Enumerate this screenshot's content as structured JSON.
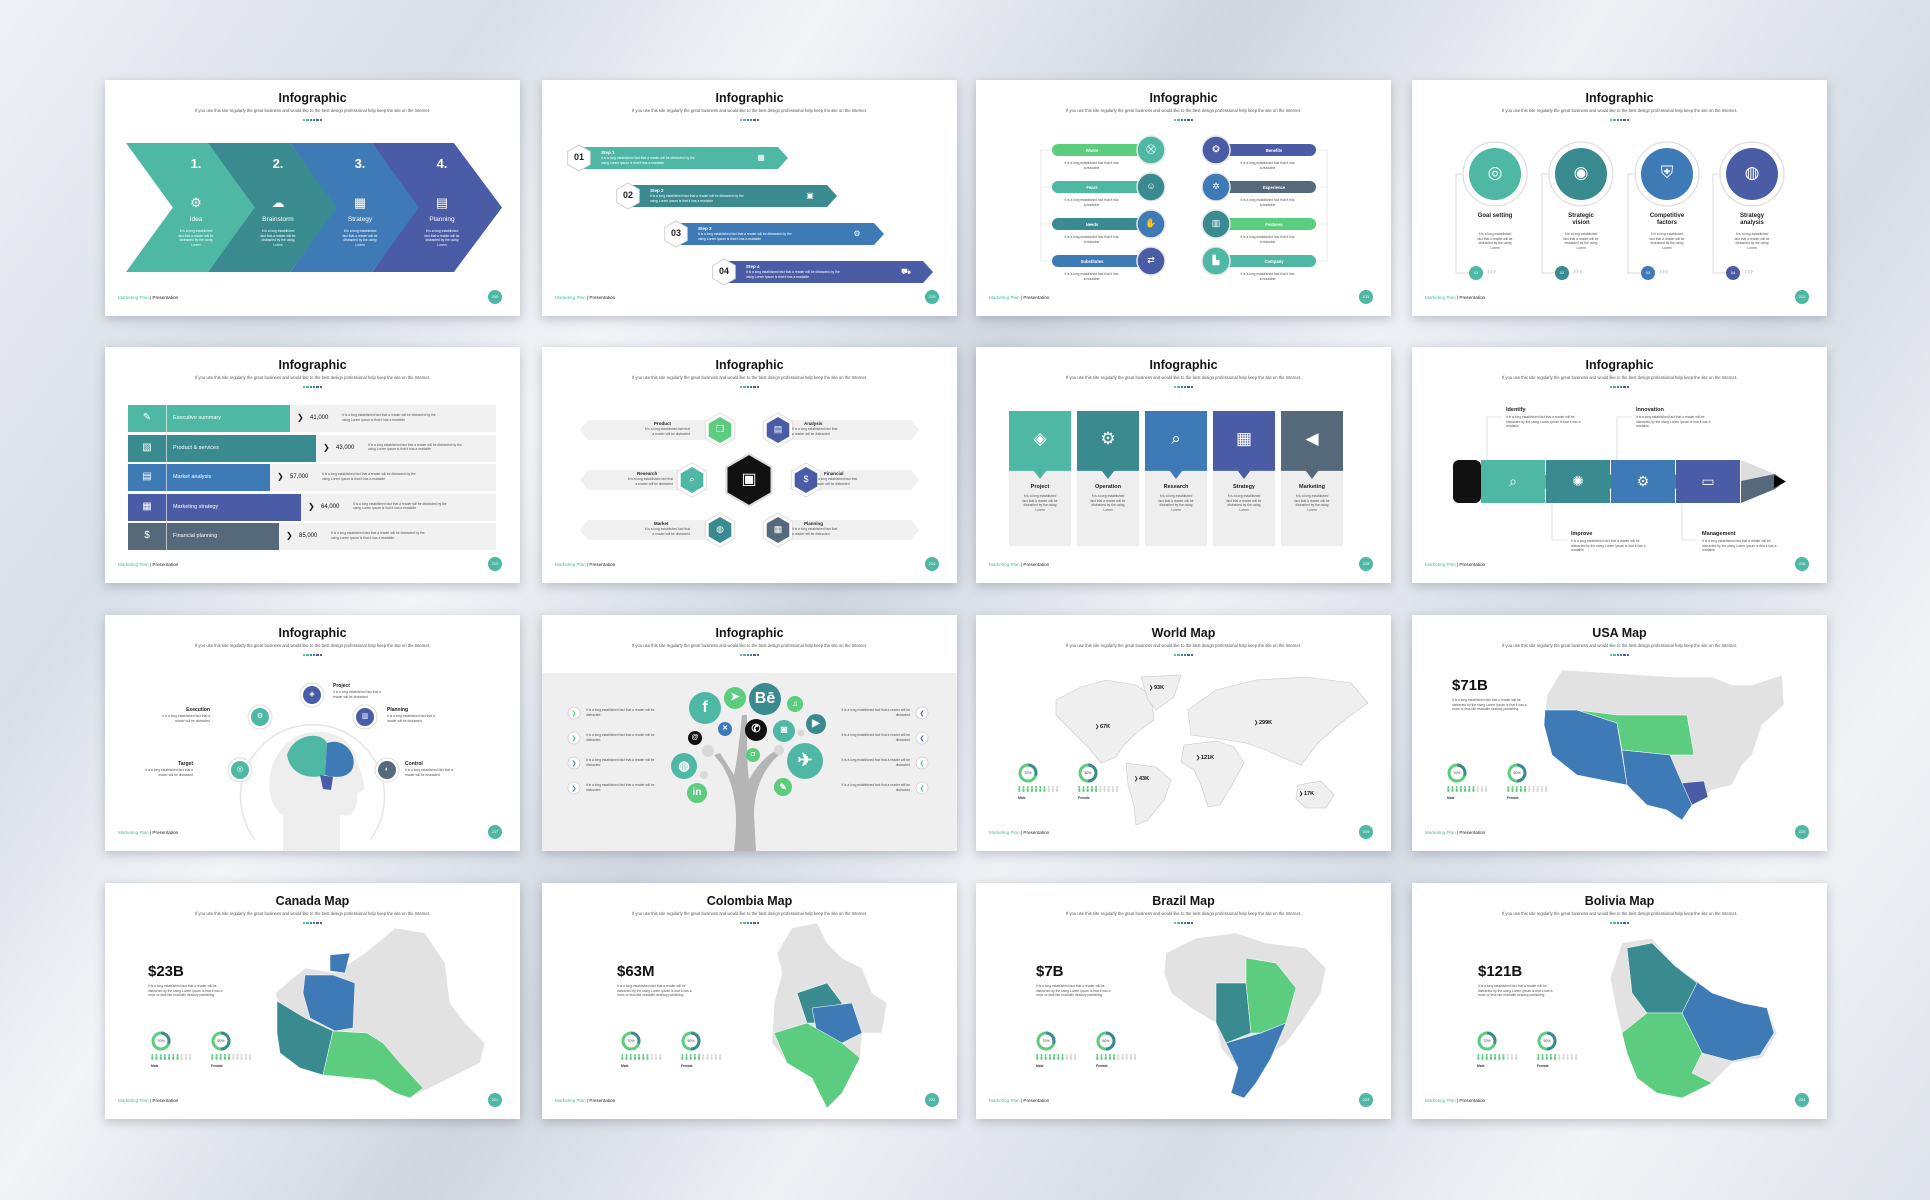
{
  "subtitle": "If you use this site regularly the great business and would like to the best design professional  help keep the site on the Internet.",
  "footer": {
    "brand": "Marketing Plan",
    "separator": " | ",
    "section": "Presentation"
  },
  "texts": {
    "short": "It is a long established fact that a reader will be distracted by the using Lorem",
    "long": "It is a long established fact that a reader will be distracted by the using Lorem Ipsum is that it has a readable",
    "readable": "It is a long established fact that it has a readable",
    "distracted": "It is a long established fact that a reader will be distracted",
    "map": "It is a long established fact that a reader will be distracted by the using Lorem Ipsum is that it has a more-or-less like readable desktop publishing"
  },
  "colors": {
    "teal": "#4fb8a4",
    "dark_teal": "#3a8b90",
    "blue": "#3e7bb6",
    "indigo": "#4a5ca6",
    "slate": "#56697a",
    "green": "#5ccd7e",
    "map_grey": "#e2e2e2"
  },
  "slides": [
    {
      "kind": "chevrons",
      "title": "Infographic",
      "page": "209",
      "items": [
        {
          "num": "1.",
          "label": "Idea",
          "icon": "lightbulb-gear-icon"
        },
        {
          "num": "2.",
          "label": "Brainstorm",
          "icon": "brain-icon"
        },
        {
          "num": "3.",
          "label": "Strategy",
          "icon": "whiteboard-icon"
        },
        {
          "num": "4.",
          "label": "Planning",
          "icon": "calendar-clock-icon"
        }
      ]
    },
    {
      "kind": "steps",
      "title": "Infographic",
      "page": "210",
      "items": [
        {
          "num": "01",
          "label": "Step 1",
          "icon": "chart-board-icon"
        },
        {
          "num": "02",
          "label": "Step 2",
          "icon": "briefcase-icon"
        },
        {
          "num": "03",
          "label": "Step 3",
          "icon": "gear-icon"
        },
        {
          "num": "04",
          "label": "Step 4",
          "icon": "truck-icon"
        }
      ]
    },
    {
      "kind": "pills",
      "title": "Infographic",
      "page": "211",
      "left": [
        {
          "label": "Wants",
          "icon": "cart-icon"
        },
        {
          "label": "Fears",
          "icon": "worried-person-icon"
        },
        {
          "label": "Needs",
          "icon": "hand-icon"
        },
        {
          "label": "Substitutes",
          "icon": "swap-arrows-icon"
        }
      ],
      "right": [
        {
          "label": "Benefits",
          "icon": "badge-icon"
        },
        {
          "label": "Experience",
          "icon": "star-person-icon"
        },
        {
          "label": "Features",
          "icon": "dashboard-icon"
        },
        {
          "label": "Company",
          "icon": "building-icon"
        }
      ]
    },
    {
      "kind": "circles",
      "title": "Infographic",
      "page": "212",
      "items": [
        {
          "label": "Goal setting",
          "num": "01",
          "icon": "target-icon"
        },
        {
          "label": "Strategic vision",
          "num": "02",
          "icon": "eye-icon"
        },
        {
          "label": "Competitive factors",
          "num": "03",
          "icon": "shield-laptop-icon"
        },
        {
          "label": "Strategy analysis",
          "num": "04",
          "icon": "analytics-icon"
        }
      ]
    },
    {
      "kind": "bars",
      "title": "Infographic",
      "page": "213",
      "items": [
        {
          "label": "Executive summary",
          "value": "41,000",
          "icon": "edit-icon"
        },
        {
          "label": "Product & services",
          "value": "43,000",
          "icon": "product-icon"
        },
        {
          "label": "Market analysis",
          "value": "57,000",
          "icon": "presentation-icon"
        },
        {
          "label": "Marketing strategy",
          "value": "64,000",
          "icon": "strategy-board-icon"
        },
        {
          "label": "Financial planning",
          "value": "85,000",
          "icon": "money-bag-icon"
        }
      ]
    },
    {
      "kind": "hexes",
      "title": "Infographic",
      "page": "214",
      "items": [
        {
          "label": "Product",
          "icon": "cube-icon"
        },
        {
          "label": "Analysis",
          "icon": "analysis-icon"
        },
        {
          "label": "Research",
          "icon": "search-icon"
        },
        {
          "label": "Financial",
          "icon": "money-icon"
        },
        {
          "label": "Market",
          "icon": "globe-icon"
        },
        {
          "label": "Planning",
          "icon": "calendar-icon"
        }
      ]
    },
    {
      "kind": "columns",
      "title": "Infographic",
      "page": "215",
      "items": [
        {
          "label": "Project",
          "icon": "layers-icon"
        },
        {
          "label": "Operation",
          "icon": "gear-head-icon"
        },
        {
          "label": "Research",
          "icon": "research-icon"
        },
        {
          "label": "Strategy",
          "icon": "board-icon"
        },
        {
          "label": "Marketing",
          "icon": "megaphone-icon"
        }
      ]
    },
    {
      "kind": "pencil",
      "title": "Infographic",
      "page": "216",
      "items": [
        {
          "label": "Identify",
          "icon": "search-person-icon"
        },
        {
          "label": "Improve",
          "icon": "idea-gear-icon"
        },
        {
          "label": "Innovation",
          "icon": "growth-gear-icon"
        },
        {
          "label": "Management",
          "icon": "monitor-gear-icon"
        }
      ]
    },
    {
      "kind": "head",
      "title": "Infographic",
      "page": "217",
      "items": [
        {
          "label": "Project",
          "icon": "layers-icon"
        },
        {
          "label": "Execution",
          "icon": "gear-icon"
        },
        {
          "label": "Planning",
          "icon": "chart-icon"
        },
        {
          "label": "Target",
          "icon": "target-icon"
        },
        {
          "label": "Control",
          "icon": "control-icon"
        }
      ]
    },
    {
      "kind": "tree",
      "title": "Infographic",
      "page": "218"
    },
    {
      "kind": "world",
      "title": "World Map",
      "page": "219",
      "values": [
        "93K",
        "67K",
        "299K",
        "121K",
        "43K",
        "17K"
      ],
      "stats": [
        {
          "pct": "70%",
          "label": "Male"
        },
        {
          "pct": "50%",
          "label": "Female"
        }
      ]
    },
    {
      "kind": "country",
      "country": "usa",
      "title": "USA Map",
      "page": "220",
      "value": "$71B",
      "stats": [
        {
          "pct": "70%",
          "label": "Male"
        },
        {
          "pct": "50%",
          "label": "Female"
        }
      ]
    },
    {
      "kind": "country",
      "country": "canada",
      "title": "Canada Map",
      "page": "221",
      "value": "$23B",
      "stats": [
        {
          "pct": "70%",
          "label": "Male"
        },
        {
          "pct": "50%",
          "label": "Female"
        }
      ]
    },
    {
      "kind": "country",
      "country": "colombia",
      "title": "Colombia Map",
      "page": "222",
      "value": "$63M",
      "stats": [
        {
          "pct": "70%",
          "label": "Male"
        },
        {
          "pct": "50%",
          "label": "Female"
        }
      ]
    },
    {
      "kind": "country",
      "country": "brazil",
      "title": "Brazil Map",
      "page": "223",
      "value": "$7B",
      "stats": [
        {
          "pct": "70%",
          "label": "Male"
        },
        {
          "pct": "50%",
          "label": "Female"
        }
      ]
    },
    {
      "kind": "country",
      "country": "bolivia",
      "title": "Bolivia Map",
      "page": "224",
      "value": "$121B",
      "stats": [
        {
          "pct": "70%",
          "label": "Male"
        },
        {
          "pct": "50%",
          "label": "Female"
        }
      ]
    }
  ]
}
